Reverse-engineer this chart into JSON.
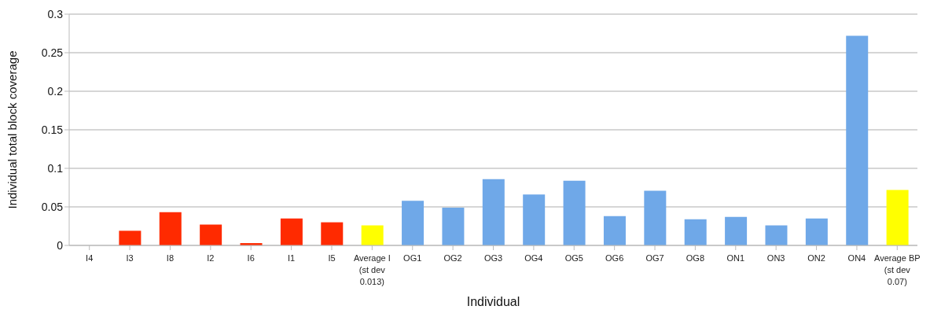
{
  "chart_data": {
    "type": "bar",
    "xlabel": "Individual",
    "ylabel": "Individual total block coverage",
    "categories": [
      "I4",
      "I3",
      "I8",
      "I2",
      "I6",
      "I1",
      "I5",
      "Average I (st dev 0.013)",
      "OG1",
      "OG2",
      "OG3",
      "OG4",
      "OG5",
      "OG6",
      "OG7",
      "OG8",
      "ON1",
      "ON3",
      "ON2",
      "ON4",
      "Average BP (st dev 0.07)"
    ],
    "values": [
      0,
      0.019,
      0.043,
      0.027,
      0.003,
      0.035,
      0.03,
      0.026,
      0.058,
      0.049,
      0.086,
      0.066,
      0.084,
      0.038,
      0.071,
      0.034,
      0.037,
      0.026,
      0.035,
      0.272,
      0.072
    ],
    "colors": [
      "#ff2a00",
      "#ff2a00",
      "#ff2a00",
      "#ff2a00",
      "#ff2a00",
      "#ff2a00",
      "#ff2a00",
      "#ffff00",
      "#6fa8e8",
      "#6fa8e8",
      "#6fa8e8",
      "#6fa8e8",
      "#6fa8e8",
      "#6fa8e8",
      "#6fa8e8",
      "#6fa8e8",
      "#6fa8e8",
      "#6fa8e8",
      "#6fa8e8",
      "#6fa8e8",
      "#ffff00"
    ],
    "ylim": [
      0,
      0.3
    ],
    "yticks": [
      0,
      0.05,
      0.1,
      0.15,
      0.2,
      0.25,
      0.3
    ],
    "grid": "y"
  }
}
